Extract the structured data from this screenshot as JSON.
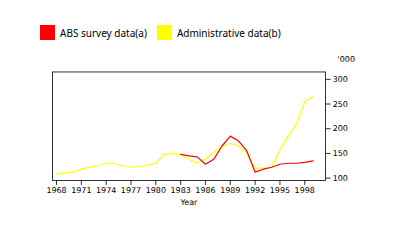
{
  "chart_data": {
    "type": "line",
    "xlabel": "Year",
    "ylabel": "'000",
    "x": [
      1968,
      1969,
      1970,
      1971,
      1972,
      1973,
      1974,
      1975,
      1976,
      1977,
      1978,
      1979,
      1980,
      1981,
      1982,
      1983,
      1984,
      1985,
      1986,
      1987,
      1988,
      1989,
      1990,
      1991,
      1992,
      1993,
      1994,
      1995,
      1996,
      1997,
      1998,
      1999
    ],
    "series": [
      {
        "name": "ABS survey data(a)",
        "color": "#ff0000",
        "values": [
          null,
          null,
          null,
          null,
          null,
          null,
          null,
          null,
          null,
          null,
          null,
          null,
          null,
          null,
          null,
          148,
          145,
          143,
          128,
          138,
          165,
          185,
          175,
          155,
          112,
          118,
          122,
          128,
          130,
          130,
          132,
          135
        ]
      },
      {
        "name": "Administrative data(b)",
        "color": "#ffff00",
        "values": [
          108,
          110,
          112,
          118,
          122,
          125,
          130,
          130,
          125,
          122,
          124,
          126,
          130,
          148,
          150,
          148,
          138,
          130,
          138,
          152,
          165,
          170,
          165,
          150,
          120,
          120,
          122,
          158,
          185,
          210,
          255,
          265
        ]
      }
    ],
    "xlim": [
      1967.5,
      2000.5
    ],
    "xticks": [
      1968,
      1971,
      1974,
      1977,
      1980,
      1983,
      1986,
      1989,
      1992,
      1995,
      1998
    ],
    "ylim": [
      95,
      315
    ],
    "yticks": [
      100,
      150,
      200,
      250,
      300
    ],
    "legend": "upper left"
  }
}
